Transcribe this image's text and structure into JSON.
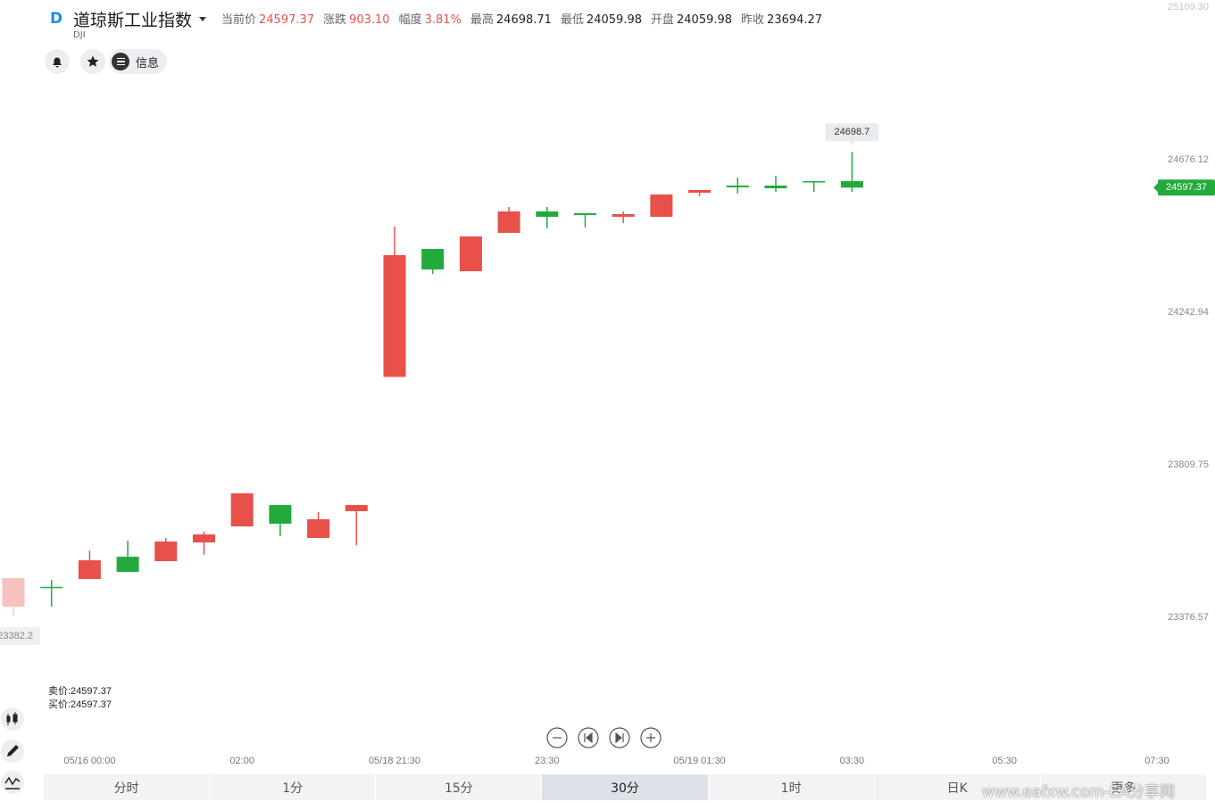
{
  "header": {
    "title": "道琼斯工业指数",
    "symbol": "DJI",
    "stats": [
      {
        "label": "当前价",
        "value": "24597.37",
        "color": "#e8504a"
      },
      {
        "label": "涨跌",
        "value": "903.10",
        "color": "#e8504a"
      },
      {
        "label": "幅度",
        "value": "3.81%",
        "color": "#e8504a"
      },
      {
        "label": "最高",
        "value": "24698.71",
        "color": "#222222"
      },
      {
        "label": "最低",
        "value": "24059.98",
        "color": "#222222"
      },
      {
        "label": "开盘",
        "value": "24059.98",
        "color": "#222222"
      },
      {
        "label": "昨收",
        "value": "23694.27",
        "color": "#222222"
      }
    ],
    "buttons": [
      "信息"
    ]
  },
  "chart_data": {
    "type": "candlestick",
    "categories": [
      null,
      null,
      "05/16 00:00",
      null,
      null,
      null,
      "02:00",
      null,
      null,
      null,
      "05/18 21:30",
      null,
      null,
      null,
      "23:30",
      null,
      null,
      null,
      "05/19 01:30",
      null,
      null,
      null,
      "03:30",
      null,
      null,
      null,
      "05:30",
      null,
      null,
      null,
      "07:30"
    ],
    "open": [
      23407.6,
      23464.0,
      23486.1,
      23549.4,
      23536.8,
      23590.0,
      23635.5,
      23696.3,
      23602.6,
      23678.6,
      24059.98,
      24423.3,
      24360.0,
      24468.9,
      24529.7,
      24524.6,
      24514.5,
      24514.5,
      24582.9,
      24603.1,
      24603.1,
      24615.8,
      24615.8,
      null,
      null,
      null,
      null,
      null,
      null,
      null,
      null
    ],
    "high": [
      23488.6,
      23483.5,
      23567.2,
      23595.0,
      23602.6,
      23620.3,
      23729.3,
      23696.3,
      23676.1,
      23696.3,
      24486.6,
      24423.3,
      24458.8,
      24542.3,
      24542.3,
      24524.6,
      24529.7,
      24577.8,
      24590.5,
      24625.9,
      24631.0,
      24615.8,
      24698.71,
      null,
      null,
      null,
      null,
      null,
      null,
      null,
      null
    ],
    "low": [
      23382.2,
      23407.6,
      23486.1,
      23506.3,
      23536.8,
      23554.5,
      23635.5,
      23607.7,
      23602.6,
      23582.4,
      24059.98,
      24352.4,
      24360.0,
      24468.9,
      24481.6,
      24484.1,
      24496.8,
      24514.5,
      24572.7,
      24580.3,
      24585.4,
      24585.4,
      24585.4,
      null,
      null,
      null,
      null,
      null,
      null,
      null,
      null
    ],
    "close": [
      23488.6,
      23462.0,
      23539.3,
      23506.3,
      23592.5,
      23612.7,
      23729.3,
      23643.1,
      23655.8,
      23696.3,
      24405.6,
      24365.0,
      24458.8,
      24529.7,
      24514.5,
      24519.5,
      24522.1,
      24577.8,
      24590.5,
      24598.1,
      24595.5,
      24613.3,
      24597.37,
      null,
      null,
      null,
      null,
      null,
      null,
      null,
      null
    ],
    "up_color": "#e8504a",
    "down_color": "#22aa3c",
    "ylim": [
      23000,
      25130
    ],
    "yticks": [
      {
        "value": 25109.3,
        "label": "25109.30"
      },
      24676.12,
      24242.94,
      23809.75,
      23376.57
    ],
    "high_marker": "24698.7",
    "low_marker": "23382.2",
    "last_price": 24597.37,
    "ask": "卖价:24597.37",
    "bid": "买价:24597.37"
  },
  "tabs": [
    "分时",
    "1分",
    "15分",
    "30分",
    "1时",
    "日K",
    "更多"
  ],
  "watermark": "www.eafxw.com-EA分享网"
}
